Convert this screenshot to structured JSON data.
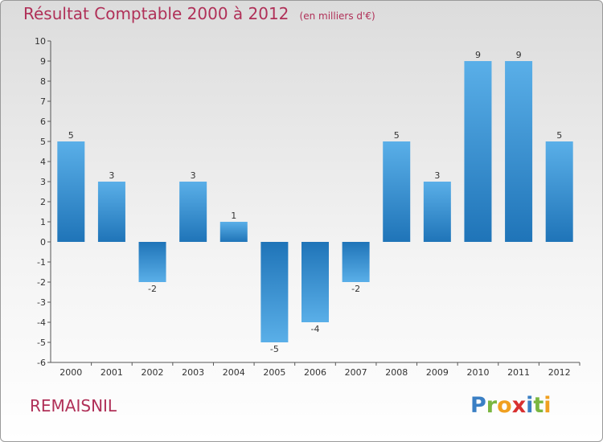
{
  "title": "Résultat Comptable 2000 à 2012",
  "subtitle": "(en milliers d'€)",
  "place_name": "REMAISNIL",
  "logo": {
    "letters": [
      {
        "ch": "P",
        "color": "#3a7fc4"
      },
      {
        "ch": "r",
        "color": "#7ab640"
      },
      {
        "ch": "o",
        "color": "#f0a020"
      },
      {
        "ch": "x",
        "color": "#d83030"
      },
      {
        "ch": "i",
        "color": "#3a7fc4"
      },
      {
        "ch": "t",
        "color": "#7ab640"
      },
      {
        "ch": "i",
        "color": "#f0a020"
      }
    ]
  },
  "colors": {
    "title": "#b03058",
    "bar_light": "#5aafe8",
    "bar_dark": "#1f74b8",
    "label": "#333333"
  },
  "chart_data": {
    "type": "bar",
    "categories": [
      "2000",
      "2001",
      "2002",
      "2003",
      "2004",
      "2005",
      "2006",
      "2007",
      "2008",
      "2009",
      "2010",
      "2011",
      "2012"
    ],
    "values": [
      5,
      3,
      -2,
      3,
      1,
      -5,
      -4,
      -2,
      5,
      3,
      9,
      9,
      5
    ],
    "data_labels": [
      "5",
      "3",
      "-2",
      "3",
      "1",
      "-5",
      "-4",
      "-2",
      "5",
      "3",
      "9",
      "9",
      "5"
    ],
    "ylim": [
      -6,
      10
    ],
    "yticks": [
      10,
      9,
      8,
      7,
      6,
      5,
      4,
      3,
      2,
      1,
      0,
      -1,
      -2,
      -3,
      -4,
      -5,
      -6
    ],
    "grid": false,
    "legend": "none"
  }
}
